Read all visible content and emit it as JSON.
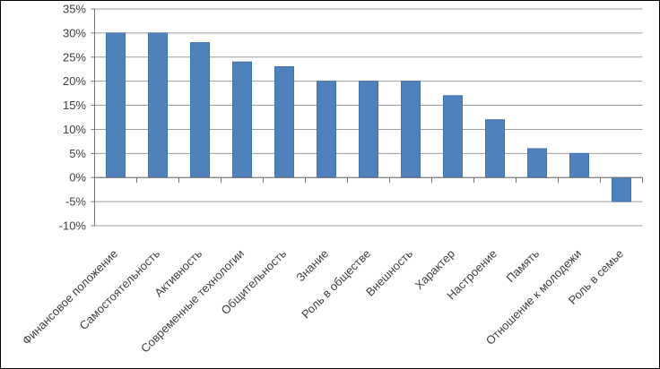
{
  "chart_data": {
    "type": "bar",
    "title": "",
    "xlabel": "",
    "ylabel": "",
    "categories": [
      "Финансовое положение",
      "Самостоятельность",
      "Активность",
      "Современные технологии",
      "Общительность",
      "Знание",
      "Роль в обществе",
      "Внешность",
      "Характер",
      "Настроение",
      "Память",
      "Отношение к молодежи",
      "Роль в семье"
    ],
    "values": [
      30,
      30,
      28,
      24,
      23,
      20,
      20,
      20,
      17,
      12,
      6,
      5,
      -5
    ],
    "value_unit": "%",
    "ylim": [
      -10,
      35
    ],
    "ytick_step": 5,
    "ytick_labels": [
      "35%",
      "30%",
      "25%",
      "20%",
      "15%",
      "10%",
      "5%",
      "0%",
      "-5%",
      "-10%"
    ],
    "grid": true,
    "legend": false,
    "x_label_rotation_deg": -45,
    "colors": {
      "bar_fill": "#4F81BD",
      "bar_border": "#4273AC",
      "gridline": "#9C9C9C",
      "axis_line": "#747474",
      "tick_text": "#3F3F3F",
      "frame_border": "#000000",
      "background": "#FFFFFF"
    }
  }
}
